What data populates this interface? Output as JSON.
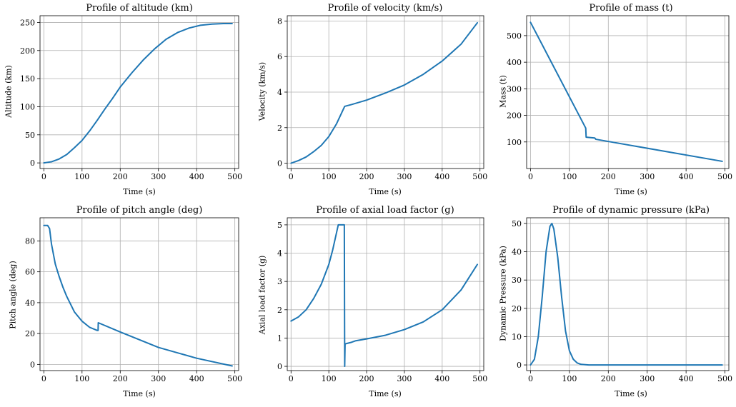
{
  "chart_data": [
    {
      "type": "line",
      "title": "Profile of altitude (km)",
      "xlabel": "Time (s)",
      "ylabel": "Altitude (km)",
      "xlim": [
        -10,
        510
      ],
      "ylim": [
        -10,
        262
      ],
      "xticks": [
        0,
        100,
        200,
        300,
        400,
        500
      ],
      "yticks": [
        0,
        50,
        100,
        150,
        200,
        250
      ],
      "grid": true,
      "color": "#1f77b4",
      "series": [
        {
          "x": [
            0,
            20,
            40,
            60,
            80,
            100,
            120,
            140,
            160,
            180,
            200,
            230,
            260,
            290,
            320,
            350,
            380,
            410,
            440,
            470,
            493
          ],
          "y": [
            0,
            2,
            7,
            15,
            27,
            40,
            57,
            76,
            96,
            115,
            135,
            160,
            183,
            203,
            220,
            232,
            240,
            245,
            247,
            248,
            248
          ]
        }
      ]
    },
    {
      "type": "line",
      "title": "Profile of velocity (km/s)",
      "xlabel": "Time (s)",
      "ylabel": "Velocity (km/s)",
      "xlim": [
        -10,
        510
      ],
      "ylim": [
        -0.3,
        8.3
      ],
      "xticks": [
        0,
        100,
        200,
        300,
        400,
        500
      ],
      "yticks": [
        0,
        2,
        4,
        6,
        8
      ],
      "grid": true,
      "color": "#1f77b4",
      "series": [
        {
          "x": [
            0,
            20,
            40,
            60,
            80,
            100,
            120,
            142,
            160,
            200,
            250,
            300,
            350,
            400,
            450,
            493
          ],
          "y": [
            0,
            0.15,
            0.35,
            0.65,
            1.0,
            1.5,
            2.2,
            3.2,
            3.3,
            3.55,
            3.95,
            4.4,
            5.0,
            5.75,
            6.7,
            7.9
          ]
        }
      ]
    },
    {
      "type": "line",
      "title": "Profile of mass (t)",
      "xlabel": "Time (s)",
      "ylabel": "Mass (t)",
      "xlim": [
        -10,
        510
      ],
      "ylim": [
        0,
        575
      ],
      "xticks": [
        0,
        100,
        200,
        300,
        400,
        500
      ],
      "yticks": [
        100,
        200,
        300,
        400,
        500
      ],
      "grid": true,
      "color": "#1f77b4",
      "series": [
        {
          "x": [
            0,
            142,
            142,
            143,
            165,
            168,
            493
          ],
          "y": [
            550,
            152,
            152,
            118,
            115,
            110,
            27
          ]
        }
      ]
    },
    {
      "type": "line",
      "title": "Profile of pitch angle (deg)",
      "xlabel": "Time (s)",
      "ylabel": "Pitch angle (deg)",
      "xlim": [
        -10,
        510
      ],
      "ylim": [
        -4,
        95
      ],
      "xticks": [
        0,
        100,
        200,
        300,
        400,
        500
      ],
      "yticks": [
        0,
        20,
        40,
        60,
        80
      ],
      "grid": true,
      "color": "#1f77b4",
      "series": [
        {
          "x": [
            0,
            10,
            15,
            20,
            30,
            40,
            50,
            60,
            80,
            100,
            120,
            140,
            142,
            142.5,
            200,
            300,
            400,
            493
          ],
          "y": [
            90,
            90,
            88,
            78,
            65,
            57,
            50,
            44,
            34,
            28,
            24,
            22,
            22,
            27,
            21,
            11,
            4,
            -1
          ]
        }
      ]
    },
    {
      "type": "line",
      "title": "Profile of axial load factor (g)",
      "xlabel": "Time (s)",
      "ylabel": "Axial load factor (g)",
      "xlim": [
        -10,
        510
      ],
      "ylim": [
        -0.15,
        5.25
      ],
      "xticks": [
        0,
        100,
        200,
        300,
        400,
        500
      ],
      "yticks": [
        0,
        1,
        2,
        3,
        4,
        5
      ],
      "grid": true,
      "color": "#1f77b4",
      "series": [
        {
          "x": [
            0,
            20,
            40,
            60,
            80,
            100,
            110,
            120,
            125,
            140,
            141,
            142,
            143,
            145,
            160,
            170,
            200,
            250,
            300,
            350,
            400,
            450,
            493
          ],
          "y": [
            1.6,
            1.75,
            2.0,
            2.4,
            2.9,
            3.6,
            4.1,
            4.7,
            5.0,
            5.0,
            5.0,
            0,
            0.8,
            0.8,
            0.85,
            0.9,
            0.97,
            1.1,
            1.3,
            1.57,
            2.0,
            2.7,
            3.6
          ]
        }
      ]
    },
    {
      "type": "line",
      "title": "Profile of dynamic pressure (kPa)",
      "xlabel": "Time (s)",
      "ylabel": "Dynamic Pressure (kPa)",
      "xlim": [
        -10,
        510
      ],
      "ylim": [
        -2,
        52
      ],
      "xticks": [
        0,
        100,
        200,
        300,
        400,
        500
      ],
      "yticks": [
        0,
        10,
        20,
        30,
        40,
        50
      ],
      "grid": true,
      "color": "#1f77b4",
      "series": [
        {
          "x": [
            0,
            10,
            20,
            30,
            40,
            50,
            55,
            60,
            70,
            80,
            90,
            100,
            110,
            120,
            130,
            150,
            200,
            300,
            400,
            493
          ],
          "y": [
            0,
            2,
            10,
            24,
            40,
            49,
            50,
            48,
            38,
            24,
            12,
            5,
            2,
            0.7,
            0.2,
            0,
            0,
            0,
            0,
            0
          ]
        }
      ]
    }
  ]
}
